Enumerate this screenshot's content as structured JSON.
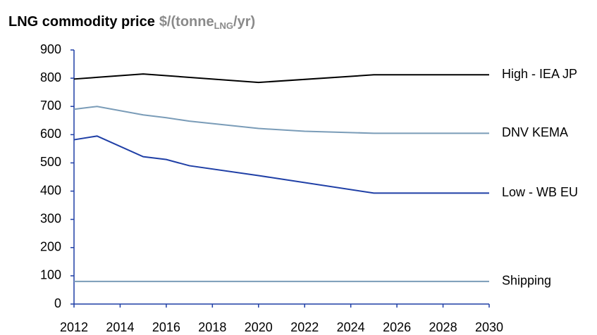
{
  "chart_data": {
    "type": "line",
    "title": "LNG commodity price",
    "y_unit": {
      "prefix": "$/(tonne",
      "subscript": "LNG",
      "suffix": "/yr)"
    },
    "xlim": [
      2012,
      2030
    ],
    "xticks": [
      2012,
      2014,
      2016,
      2018,
      2020,
      2022,
      2024,
      2026,
      2028,
      2030
    ],
    "ylim": [
      0,
      900
    ],
    "yticks": [
      0,
      100,
      200,
      300,
      400,
      500,
      600,
      700,
      800,
      900
    ],
    "grid": false,
    "series": [
      {
        "name": "High - IEA JP",
        "color": "#000000",
        "x": [
          2012,
          2013,
          2015,
          2020,
          2025,
          2030
        ],
        "values": [
          797,
          803,
          815,
          785,
          812,
          812
        ]
      },
      {
        "name": "DNV KEMA",
        "color": "#7a9cb8",
        "x": [
          2012,
          2013,
          2015,
          2016,
          2017,
          2020,
          2022,
          2025,
          2030
        ],
        "values": [
          690,
          700,
          670,
          660,
          648,
          622,
          612,
          605,
          605
        ]
      },
      {
        "name": "Low - WB EU",
        "color": "#1f3fa6",
        "x": [
          2012,
          2013,
          2015,
          2016,
          2017,
          2020,
          2025,
          2030
        ],
        "values": [
          582,
          595,
          522,
          512,
          490,
          455,
          393,
          393
        ]
      },
      {
        "name": "Shipping",
        "color": "#7a9cb8",
        "x": [
          2012,
          2030
        ],
        "values": [
          80,
          80
        ]
      }
    ]
  }
}
